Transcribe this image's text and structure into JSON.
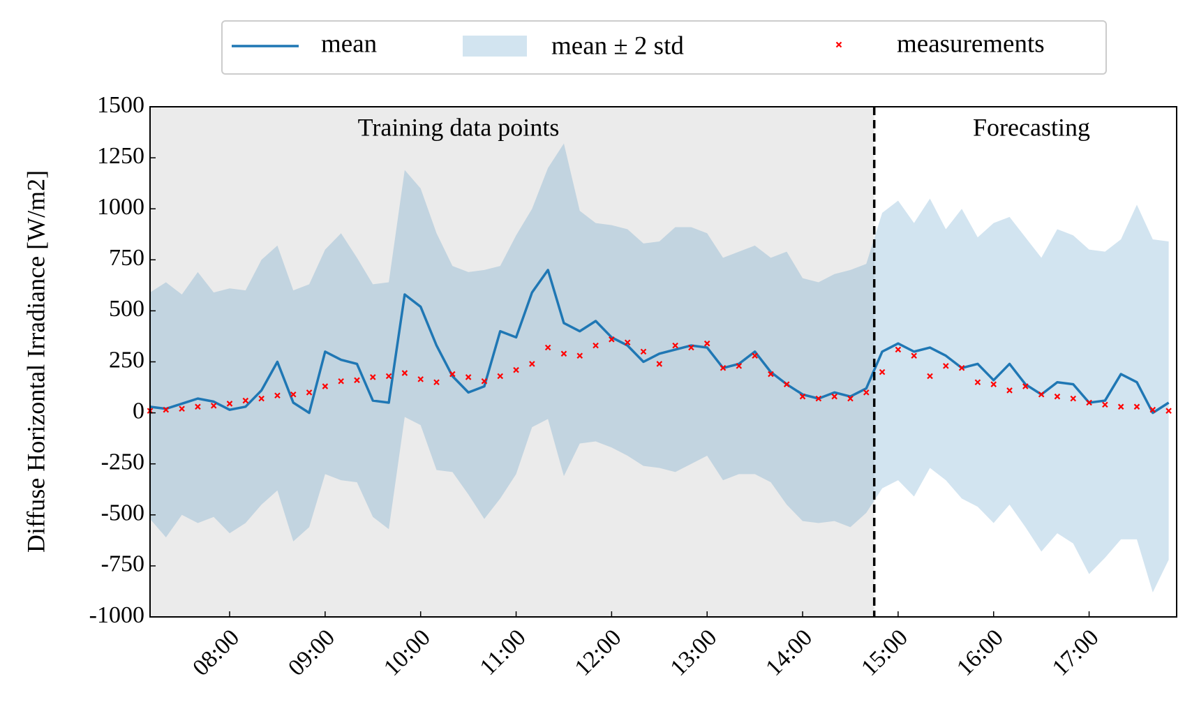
{
  "chart_data": {
    "type": "line",
    "ylabel": "Diffuse Horizontal Irradiance [W/m2]",
    "annotations": [
      "Training data points",
      "Forecasting"
    ],
    "forecast_start": "14:45",
    "x": [
      "07:10",
      "07:20",
      "07:30",
      "07:40",
      "07:50",
      "08:00",
      "08:10",
      "08:20",
      "08:30",
      "08:40",
      "08:50",
      "09:00",
      "09:10",
      "09:20",
      "09:30",
      "09:40",
      "09:50",
      "10:00",
      "10:10",
      "10:20",
      "10:30",
      "10:40",
      "10:50",
      "11:00",
      "11:10",
      "11:20",
      "11:30",
      "11:40",
      "11:50",
      "12:00",
      "12:10",
      "12:20",
      "12:30",
      "12:40",
      "12:50",
      "13:00",
      "13:10",
      "13:20",
      "13:30",
      "13:40",
      "13:50",
      "14:00",
      "14:10",
      "14:20",
      "14:30",
      "14:40",
      "14:50",
      "15:00",
      "15:10",
      "15:20",
      "15:30",
      "15:40",
      "15:50",
      "16:00",
      "16:10",
      "16:20",
      "16:30",
      "16:40",
      "16:50",
      "17:00",
      "17:10",
      "17:20",
      "17:30",
      "17:40",
      "17:50"
    ],
    "series": [
      {
        "name": "mean",
        "color": "#1f77b4",
        "values": [
          30,
          20,
          45,
          70,
          55,
          15,
          30,
          110,
          250,
          50,
          0,
          300,
          260,
          240,
          60,
          50,
          580,
          520,
          330,
          180,
          100,
          130,
          400,
          370,
          590,
          700,
          440,
          400,
          450,
          370,
          330,
          250,
          290,
          310,
          330,
          320,
          220,
          240,
          300,
          200,
          140,
          90,
          70,
          100,
          80,
          120,
          300,
          340,
          300,
          320,
          280,
          220,
          240,
          160,
          240,
          140,
          90,
          150,
          140,
          50,
          60,
          190,
          150,
          0,
          50
        ]
      },
      {
        "name": "mean ± 2 std",
        "color": "#1f77b4",
        "upper": [
          590,
          640,
          580,
          690,
          590,
          610,
          600,
          750,
          820,
          600,
          630,
          800,
          880,
          760,
          630,
          640,
          1190,
          1100,
          880,
          720,
          690,
          700,
          720,
          870,
          1000,
          1200,
          1320,
          990,
          930,
          920,
          900,
          830,
          840,
          910,
          910,
          880,
          760,
          790,
          820,
          760,
          790,
          660,
          640,
          680,
          700,
          730,
          980,
          1040,
          930,
          1050,
          900,
          1000,
          860,
          930,
          960,
          860,
          760,
          900,
          870,
          800,
          790,
          850,
          1020,
          850,
          840
        ],
        "lower": [
          -520,
          -610,
          -500,
          -540,
          -510,
          -590,
          -540,
          -450,
          -380,
          -630,
          -560,
          -300,
          -330,
          -340,
          -510,
          -570,
          -20,
          -60,
          -280,
          -290,
          -400,
          -520,
          -420,
          -300,
          -70,
          -30,
          -310,
          -150,
          -140,
          -170,
          -210,
          -260,
          -270,
          -290,
          -250,
          -210,
          -330,
          -300,
          -300,
          -340,
          -450,
          -530,
          -540,
          -530,
          -560,
          -490,
          -370,
          -330,
          -410,
          -270,
          -330,
          -420,
          -460,
          -540,
          -450,
          -560,
          -680,
          -590,
          -640,
          -790,
          -710,
          -620,
          -620,
          -880,
          -720
        ]
      },
      {
        "name": "measurements",
        "color": "#ff0000",
        "values": [
          10,
          15,
          20,
          30,
          35,
          45,
          60,
          70,
          85,
          90,
          100,
          130,
          155,
          160,
          175,
          180,
          195,
          165,
          150,
          190,
          175,
          155,
          180,
          210,
          240,
          320,
          290,
          280,
          330,
          360,
          345,
          300,
          240,
          330,
          320,
          340,
          220,
          230,
          280,
          190,
          140,
          80,
          70,
          80,
          70,
          100,
          200,
          310,
          280,
          180,
          230,
          220,
          150,
          140,
          110,
          130,
          90,
          80,
          70,
          50,
          40,
          30,
          30,
          15,
          10
        ]
      }
    ],
    "xlim": [
      "07:10",
      "17:55"
    ],
    "xticks": [
      "08:00",
      "09:00",
      "10:00",
      "11:00",
      "12:00",
      "13:00",
      "14:00",
      "15:00",
      "16:00",
      "17:00"
    ],
    "ylim": [
      -1000,
      1500
    ],
    "yticks": [
      -1000,
      -750,
      -500,
      -250,
      0,
      250,
      500,
      750,
      1000,
      1250,
      1500
    ],
    "grid": false
  }
}
